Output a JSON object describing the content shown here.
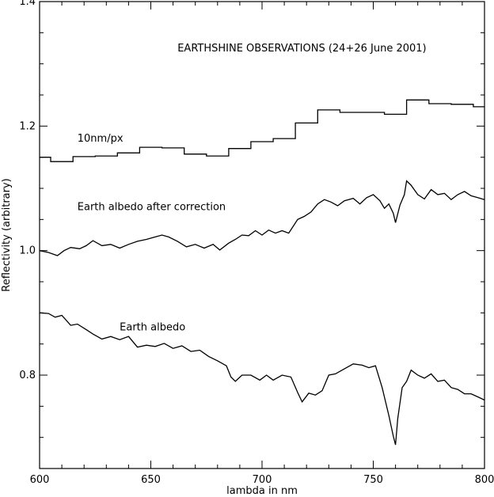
{
  "chart_data": {
    "type": "line",
    "title": "",
    "xlabel": "lambda in nm",
    "ylabel": "Reflectivity (arbitrary)",
    "xlim": [
      600,
      800
    ],
    "ylim": [
      0.65,
      1.4
    ],
    "xticks": [
      600,
      650,
      700,
      750,
      800
    ],
    "xtick_labels": [
      "600",
      "650",
      "700",
      "750",
      "800"
    ],
    "yticks": [
      0.8,
      1.0,
      1.2,
      1.4
    ],
    "ytick_labels": [
      "0.8",
      "1.0",
      "1.2",
      "1.4"
    ],
    "grid": false,
    "annotations": [
      {
        "text": "EARTHSHINE OBSERVATIONS (24+26 June 2001)",
        "x": 662,
        "y": 1.32
      },
      {
        "text": "10nm/px",
        "x": 617,
        "y": 1.175
      },
      {
        "text": "Earth albedo after correction",
        "x": 617,
        "y": 1.065
      },
      {
        "text": "Earth albedo",
        "x": 636,
        "y": 0.872
      }
    ],
    "series": [
      {
        "name": "10nm/px",
        "step": true,
        "x": [
          600,
          605,
          615,
          625,
          635,
          645,
          655,
          665,
          675,
          685,
          695,
          705,
          715,
          725,
          735,
          745,
          755,
          765,
          775,
          785,
          795,
          800
        ],
        "y": [
          1.15,
          1.143,
          1.151,
          1.152,
          1.157,
          1.166,
          1.165,
          1.155,
          1.152,
          1.164,
          1.175,
          1.18,
          1.205,
          1.226,
          1.222,
          1.222,
          1.219,
          1.242,
          1.236,
          1.235,
          1.231,
          1.231
        ]
      },
      {
        "name": "Earth albedo after correction",
        "x": [
          600,
          604,
          608,
          611,
          614,
          618,
          621,
          624,
          628,
          632,
          636,
          640,
          644,
          648,
          652,
          655,
          658,
          662,
          666,
          670,
          674,
          678,
          681,
          685,
          688,
          691,
          694,
          697,
          700,
          703,
          706,
          709,
          712,
          716,
          719,
          722,
          725,
          728,
          731,
          734,
          737,
          741,
          744,
          747,
          750,
          753,
          755,
          757,
          759,
          760,
          762,
          764,
          765,
          767,
          770,
          773,
          776,
          779,
          782,
          785,
          788,
          791,
          794,
          797,
          800
        ],
        "y": [
          1.0,
          0.997,
          0.992,
          1.0,
          1.005,
          1.003,
          1.008,
          1.016,
          1.008,
          1.01,
          1.004,
          1.01,
          1.015,
          1.018,
          1.022,
          1.025,
          1.022,
          1.015,
          1.006,
          1.01,
          1.004,
          1.01,
          1.001,
          1.012,
          1.018,
          1.025,
          1.024,
          1.032,
          1.025,
          1.033,
          1.028,
          1.032,
          1.028,
          1.05,
          1.055,
          1.062,
          1.075,
          1.082,
          1.078,
          1.072,
          1.08,
          1.084,
          1.075,
          1.085,
          1.09,
          1.08,
          1.068,
          1.075,
          1.06,
          1.045,
          1.073,
          1.09,
          1.112,
          1.105,
          1.09,
          1.083,
          1.098,
          1.09,
          1.092,
          1.082,
          1.09,
          1.095,
          1.088,
          1.085,
          1.082
        ]
      },
      {
        "name": "Earth albedo",
        "x": [
          600,
          604,
          607,
          610,
          614,
          617,
          621,
          624,
          628,
          632,
          636,
          640,
          644,
          648,
          652,
          656,
          660,
          664,
          668,
          672,
          676,
          680,
          684,
          686,
          688,
          691,
          695,
          699,
          702,
          705,
          709,
          713,
          716,
          718,
          721,
          724,
          727,
          730,
          733,
          737,
          741,
          745,
          748,
          751,
          754,
          757,
          759,
          760,
          761,
          763,
          765,
          767,
          770,
          773,
          776,
          779,
          782,
          785,
          788,
          791,
          794,
          797,
          800
        ],
        "y": [
          0.9,
          0.899,
          0.893,
          0.896,
          0.88,
          0.882,
          0.873,
          0.866,
          0.858,
          0.862,
          0.857,
          0.862,
          0.845,
          0.848,
          0.846,
          0.851,
          0.843,
          0.847,
          0.838,
          0.84,
          0.83,
          0.823,
          0.815,
          0.797,
          0.79,
          0.8,
          0.8,
          0.792,
          0.8,
          0.792,
          0.8,
          0.797,
          0.772,
          0.757,
          0.771,
          0.768,
          0.775,
          0.8,
          0.802,
          0.81,
          0.818,
          0.816,
          0.812,
          0.815,
          0.78,
          0.735,
          0.702,
          0.688,
          0.73,
          0.78,
          0.79,
          0.808,
          0.8,
          0.795,
          0.802,
          0.79,
          0.792,
          0.78,
          0.777,
          0.77,
          0.77,
          0.765,
          0.76
        ]
      }
    ]
  }
}
